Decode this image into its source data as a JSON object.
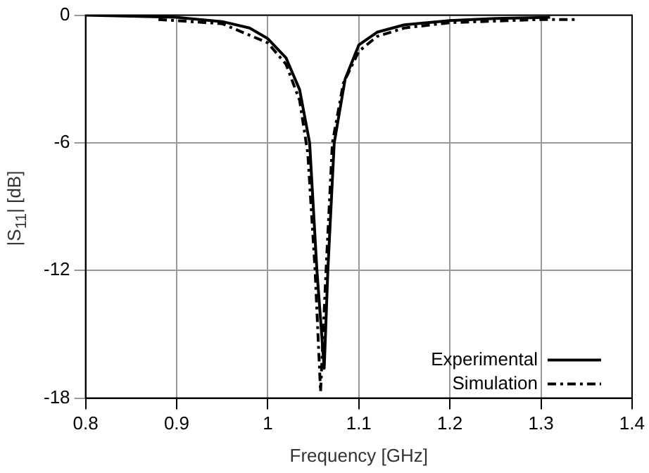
{
  "chart_data": {
    "type": "line",
    "xlabel": "Frequency [GHz]",
    "ylabel": "|S$_{11}$| [dB]",
    "xlim": [
      0.8,
      1.4
    ],
    "xticks": [
      0.8,
      0.9,
      1,
      1.1,
      1.2,
      1.3,
      1.4
    ],
    "ylim": [
      -18,
      0
    ],
    "yticks": [
      -18,
      -12,
      -6,
      0
    ],
    "grid": true,
    "legend": "bottom right",
    "marker": "none",
    "series": [
      {
        "name": "Experimental",
        "color": "#000000",
        "line_style": "solid",
        "x": [
          0.8,
          0.9,
          0.95,
          0.98,
          1.0,
          1.02,
          1.035,
          1.046,
          1.054,
          1.062,
          1.066,
          1.073,
          1.085,
          1.1,
          1.12,
          1.15,
          1.2,
          1.25,
          1.31
        ],
        "values": [
          0,
          -0.1,
          -0.3,
          -0.6,
          -1.1,
          -2.0,
          -3.5,
          -6,
          -12,
          -16.6,
          -12,
          -6,
          -3,
          -1.4,
          -0.8,
          -0.45,
          -0.25,
          -0.15,
          -0.1
        ]
      },
      {
        "name": "Simulation",
        "color": "#000000",
        "line_style": "dashdot",
        "x": [
          0.88,
          0.95,
          1.0,
          1.02,
          1.035,
          1.044,
          1.052,
          1.058,
          1.064,
          1.071,
          1.083,
          1.1,
          1.12,
          1.15,
          1.2,
          1.3,
          1.34
        ],
        "values": [
          -0.2,
          -0.4,
          -1.3,
          -2.3,
          -4,
          -6.5,
          -12,
          -17.7,
          -12,
          -6,
          -3.2,
          -1.7,
          -1.0,
          -0.6,
          -0.35,
          -0.2,
          -0.2
        ]
      }
    ]
  }
}
